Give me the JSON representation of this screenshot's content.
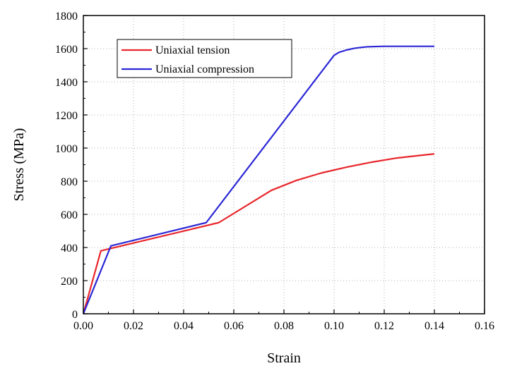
{
  "chart_data": {
    "type": "line",
    "title": "",
    "xlabel": "Strain",
    "ylabel": "Stress (MPa)",
    "xlim": [
      0,
      0.16
    ],
    "ylim": [
      0,
      1800
    ],
    "xticks": [
      0,
      0.02,
      0.04,
      0.06,
      0.08,
      0.1,
      0.12,
      0.14,
      0.16
    ],
    "xtick_labels": [
      "0.00",
      "0.02",
      "0.04",
      "0.06",
      "0.08",
      "0.10",
      "0.12",
      "0.14",
      "0.16"
    ],
    "yticks": [
      0,
      200,
      400,
      600,
      800,
      1000,
      1200,
      1400,
      1600,
      1800
    ],
    "ytick_labels": [
      "0",
      "200",
      "400",
      "600",
      "800",
      "1000",
      "1200",
      "1400",
      "1600",
      "1800"
    ],
    "grid": true,
    "legend_position": "top-left",
    "series": [
      {
        "name": "Uniaxial tension",
        "color": "#e8262b",
        "x": [
          0,
          0.007,
          0.054,
          0.075,
          0.085,
          0.095,
          0.105,
          0.115,
          0.125,
          0.135,
          0.14
        ],
        "y": [
          0,
          380,
          550,
          745,
          805,
          850,
          885,
          915,
          940,
          957,
          965
        ]
      },
      {
        "name": "Uniaxial compression",
        "color": "#2b27d6",
        "x": [
          0,
          0.011,
          0.049,
          0.1,
          0.102,
          0.105,
          0.108,
          0.11,
          0.113,
          0.117,
          0.12,
          0.14
        ],
        "y": [
          0,
          410,
          550,
          1560,
          1578,
          1592,
          1602,
          1606,
          1611,
          1613,
          1614,
          1614
        ]
      }
    ]
  }
}
